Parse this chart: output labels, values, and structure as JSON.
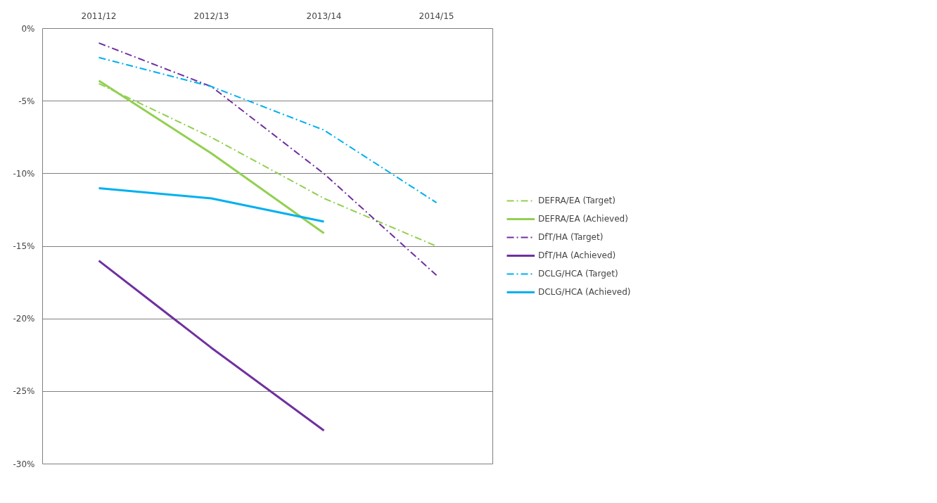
{
  "chart_data": {
    "type": "line",
    "categories": [
      "2011/12",
      "2012/13",
      "2013/14",
      "2014/15"
    ],
    "series": [
      {
        "name": "DEFRA/EA (Target)",
        "color": "#92d050",
        "line_style": "dashdot",
        "values": [
          -3.8,
          -7.5,
          -11.7,
          -15
        ]
      },
      {
        "name": "DEFRA/EA (Achieved)",
        "color": "#92d050",
        "line_style": "solid",
        "values": [
          -3.6,
          -8.6,
          -14.1,
          null
        ]
      },
      {
        "name": "DfT/HA (Target)",
        "color": "#7030a0",
        "line_style": "dashdot",
        "values": [
          -1,
          -4,
          -10,
          -17
        ]
      },
      {
        "name": "DfT/HA (Achieved)",
        "color": "#7030a0",
        "line_style": "solid",
        "values": [
          -16,
          -22,
          -27.7,
          null
        ]
      },
      {
        "name": "DCLG/HCA (Target)",
        "color": "#00b0f0",
        "line_style": "dashdot",
        "values": [
          -2,
          -4,
          -7,
          -12
        ]
      },
      {
        "name": "DCLG/HCA (Achieved)",
        "color": "#00b0f0",
        "line_style": "solid",
        "values": [
          -11,
          -11.7,
          -13.3,
          null
        ]
      }
    ],
    "ylim": [
      -30,
      0
    ],
    "yticks": [
      {
        "value": 0,
        "label": "0%"
      },
      {
        "value": -5,
        "label": "-5%"
      },
      {
        "value": -10,
        "label": "-10%"
      },
      {
        "value": -15,
        "label": "-15%"
      },
      {
        "value": -20,
        "label": "-20%"
      },
      {
        "value": -25,
        "label": "-25%"
      },
      {
        "value": -30,
        "label": "-30%"
      }
    ],
    "grid": "y",
    "legend": "right",
    "marker": "none"
  }
}
